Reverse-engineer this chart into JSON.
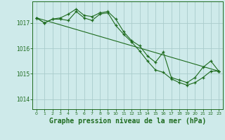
{
  "background_color": "#ceeaea",
  "grid_color": "#b8d8d8",
  "line_color": "#1e6b1e",
  "xlabel": "Graphe pression niveau de la mer (hPa)",
  "xlabel_fontsize": 7.0,
  "ylabel_ticks": [
    1014,
    1015,
    1016,
    1017
  ],
  "xlim": [
    -0.5,
    23.5
  ],
  "ylim": [
    1013.6,
    1017.85
  ],
  "x_ticks": [
    0,
    1,
    2,
    3,
    4,
    5,
    6,
    7,
    8,
    9,
    10,
    11,
    12,
    13,
    14,
    15,
    16,
    17,
    18,
    19,
    20,
    21,
    22,
    23
  ],
  "series1_x": [
    0,
    1,
    2,
    3,
    4,
    5,
    6,
    7,
    8,
    9,
    10,
    11,
    12,
    13,
    14,
    15,
    16,
    17,
    18,
    19,
    20,
    21,
    22,
    23
  ],
  "series1_y": [
    1017.2,
    1017.0,
    1017.15,
    1017.2,
    1017.35,
    1017.55,
    1017.3,
    1017.25,
    1017.4,
    1017.45,
    1017.15,
    1016.65,
    1016.3,
    1016.1,
    1015.7,
    1015.45,
    1015.85,
    1014.85,
    1014.75,
    1014.65,
    1014.85,
    1015.25,
    1015.5,
    1015.1
  ],
  "series2_x": [
    0,
    1,
    2,
    3,
    4,
    5,
    6,
    7,
    8,
    9,
    10,
    11,
    12,
    13,
    14,
    15,
    16,
    17,
    18,
    19,
    20,
    21,
    22,
    23
  ],
  "series2_y": [
    1017.2,
    1017.0,
    1017.15,
    1017.15,
    1017.1,
    1017.45,
    1017.2,
    1017.1,
    1017.35,
    1017.4,
    1016.9,
    1016.55,
    1016.25,
    1015.9,
    1015.5,
    1015.15,
    1015.05,
    1014.8,
    1014.65,
    1014.55,
    1014.65,
    1014.85,
    1015.1,
    1015.1
  ],
  "series3_x": [
    0,
    23
  ],
  "series3_y": [
    1017.2,
    1015.1
  ]
}
